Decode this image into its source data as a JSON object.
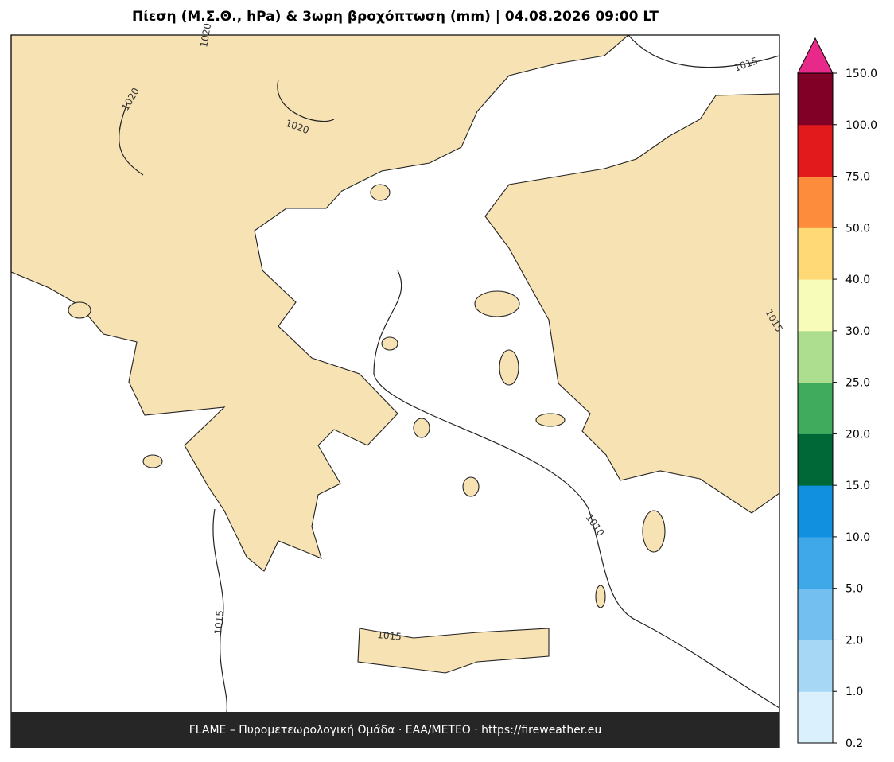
{
  "title": "Πίεση (Μ.Σ.Θ., hPa) & 3ωρη βροχόπτωση (mm)  |  04.08.2026 09:00 LT",
  "footer": "FLAME – Πυρομετεωρολογική Ομάδα · ΕΑΑ/METEO · https://fireweather.eu",
  "contour_labels": [
    "1020",
    "1020",
    "1020",
    "1015",
    "1015",
    "1010",
    "1015",
    "1015"
  ],
  "colorbar": {
    "ticks": [
      0.2,
      {
        "value": 1,
        "label": "1.0"
      },
      {
        "value": 2,
        "label": "2.0"
      },
      {
        "value": 5,
        "label": "5.0"
      },
      {
        "value": 10,
        "label": "10.0"
      },
      {
        "value": 15,
        "label": "15.0"
      },
      {
        "value": 20,
        "label": "20.0"
      },
      {
        "value": 25,
        "label": "25.0"
      },
      {
        "value": 30,
        "label": "30.0"
      },
      {
        "value": 40,
        "label": "40.0"
      },
      {
        "value": 50,
        "label": "50.0"
      },
      {
        "value": 75,
        "label": "75.0"
      },
      {
        "value": 100,
        "label": "100.0"
      },
      {
        "value": 150,
        "label": "150.0"
      }
    ],
    "colors": [
      "#daf0fd",
      "#a6d8f6",
      "#73c0f0",
      "#3ea8e8",
      "#1190e0",
      "#006837",
      "#41ab5d",
      "#addd8e",
      "#f7fcb9",
      "#fed976",
      "#fd8d3c",
      "#e31a1c",
      "#800026"
    ],
    "extend_color": "#e7298a"
  }
}
